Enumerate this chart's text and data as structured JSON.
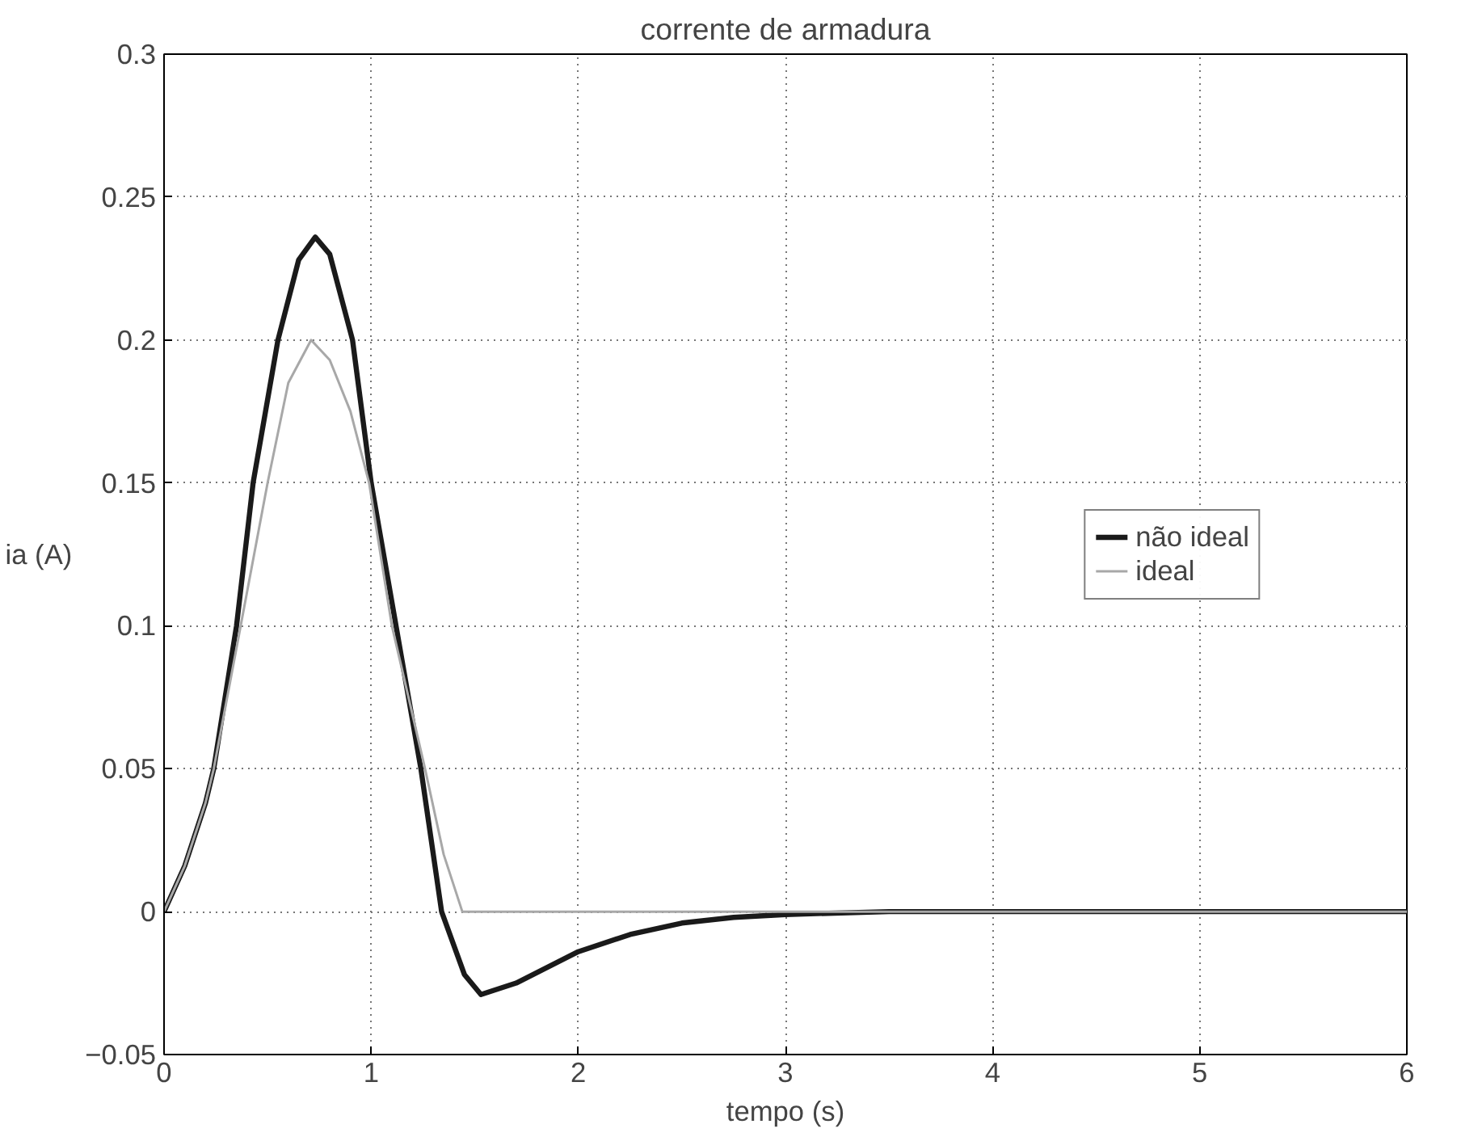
{
  "chart_data": {
    "type": "line",
    "title": "corrente de armadura",
    "xlabel": "tempo (s)",
    "ylabel": "ia (A)",
    "xlim": [
      0,
      6
    ],
    "ylim": [
      -0.05,
      0.3
    ],
    "xticks": [
      0,
      1,
      2,
      3,
      4,
      5,
      6
    ],
    "yticks": [
      -0.05,
      0,
      0.05,
      0.1,
      0.15,
      0.2,
      0.25,
      0.3
    ],
    "grid": true,
    "legend": "right",
    "line_style": "solid",
    "series": [
      {
        "name": "não ideal",
        "color": "#1a1a1a",
        "x": [
          0,
          0.1,
          0.2,
          0.24,
          0.35,
          0.43,
          0.55,
          0.65,
          0.73,
          0.8,
          0.91,
          1.0,
          1.12,
          1.24,
          1.34,
          1.45,
          1.53,
          1.7,
          2.0,
          2.25,
          2.5,
          2.75,
          3.0,
          3.5,
          4,
          5,
          6
        ],
        "values": [
          0,
          0.016,
          0.038,
          0.05,
          0.1,
          0.15,
          0.2,
          0.228,
          0.236,
          0.23,
          0.2,
          0.15,
          0.1,
          0.05,
          0,
          -0.022,
          -0.029,
          -0.025,
          -0.014,
          -0.008,
          -0.004,
          -0.002,
          -0.001,
          0,
          0,
          0,
          0
        ]
      },
      {
        "name": "ideal",
        "color": "#a8a8a8",
        "x": [
          0,
          0.1,
          0.2,
          0.24,
          0.37,
          0.5,
          0.6,
          0.71,
          0.8,
          0.9,
          0.99,
          1.1,
          1.26,
          1.35,
          1.44,
          2,
          3,
          4,
          5,
          6
        ],
        "values": [
          0,
          0.016,
          0.038,
          0.05,
          0.1,
          0.15,
          0.185,
          0.2,
          0.193,
          0.175,
          0.15,
          0.1,
          0.05,
          0.02,
          0,
          0,
          0,
          0,
          0,
          0
        ]
      }
    ]
  }
}
